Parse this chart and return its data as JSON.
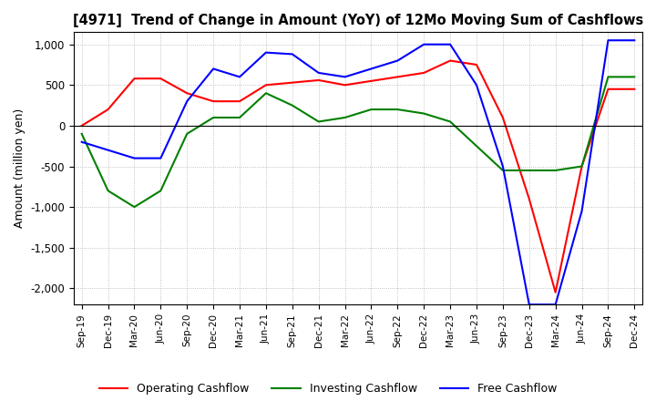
{
  "title": "[4971]  Trend of Change in Amount (YoY) of 12Mo Moving Sum of Cashflows",
  "ylabel": "Amount (million yen)",
  "ylim": [
    -2200,
    1150
  ],
  "yticks": [
    1000,
    500,
    0,
    -500,
    -1000,
    -1500,
    -2000
  ],
  "x_labels": [
    "Sep-19",
    "Dec-19",
    "Mar-20",
    "Jun-20",
    "Sep-20",
    "Dec-20",
    "Mar-21",
    "Jun-21",
    "Sep-21",
    "Dec-21",
    "Mar-22",
    "Jun-22",
    "Sep-22",
    "Dec-22",
    "Mar-23",
    "Jun-23",
    "Sep-23",
    "Dec-23",
    "Mar-24",
    "Jun-24",
    "Sep-24",
    "Dec-24"
  ],
  "operating": [
    0,
    200,
    580,
    580,
    400,
    300,
    300,
    500,
    530,
    560,
    500,
    550,
    600,
    650,
    800,
    750,
    100,
    -900,
    -2050,
    -500,
    450,
    450
  ],
  "investing": [
    -100,
    -800,
    -1000,
    -800,
    -100,
    100,
    100,
    400,
    250,
    50,
    100,
    200,
    200,
    150,
    50,
    -250,
    -550,
    -550,
    -550,
    -500,
    600,
    600
  ],
  "free": [
    -200,
    -300,
    -400,
    -400,
    300,
    700,
    600,
    900,
    880,
    650,
    600,
    700,
    800,
    1000,
    1000,
    500,
    -500,
    -2200,
    -2200,
    -1050,
    1050,
    1050
  ],
  "op_color": "#ff0000",
  "inv_color": "#008000",
  "free_color": "#0000ff",
  "bg_color": "#ffffff",
  "grid_color": "#b0b0b0"
}
